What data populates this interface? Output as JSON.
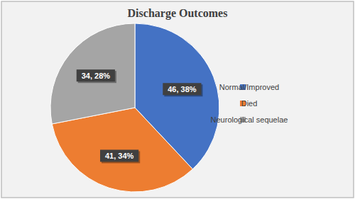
{
  "chart_data": {
    "type": "pie",
    "title": "Discharge Outcomes",
    "categories": [
      "Normal/Improved",
      "Died",
      "Neurological sequelae"
    ],
    "values": [
      46,
      41,
      34
    ],
    "value_labels": [
      "46, 38%",
      "41, 34%",
      "34, 28%"
    ],
    "colors": [
      "#4472c4",
      "#ed7d31",
      "#a5a5a5"
    ],
    "data_labels": true,
    "legend": "right"
  }
}
